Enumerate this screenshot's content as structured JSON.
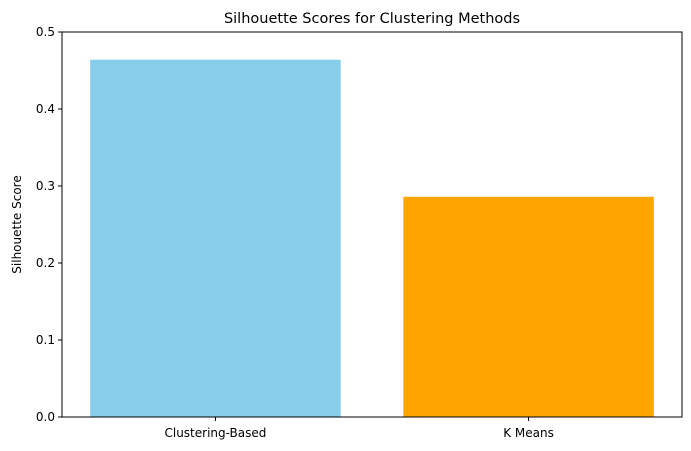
{
  "chart_data": {
    "type": "bar",
    "title": "Silhouette Scores for Clustering Methods",
    "xlabel": "",
    "ylabel": "Silhouette Score",
    "categories": [
      "Clustering-Based",
      "K Means"
    ],
    "values": [
      0.464,
      0.286
    ],
    "colors": [
      "#87CEEB",
      "#FFA500"
    ],
    "ylim": [
      0,
      0.5
    ],
    "yticks": [
      0.0,
      0.1,
      0.2,
      0.3,
      0.4,
      0.5
    ],
    "ytick_labels": [
      "0.0",
      "0.1",
      "0.2",
      "0.3",
      "0.4",
      "0.5"
    ],
    "grid": false,
    "legend": "none"
  }
}
